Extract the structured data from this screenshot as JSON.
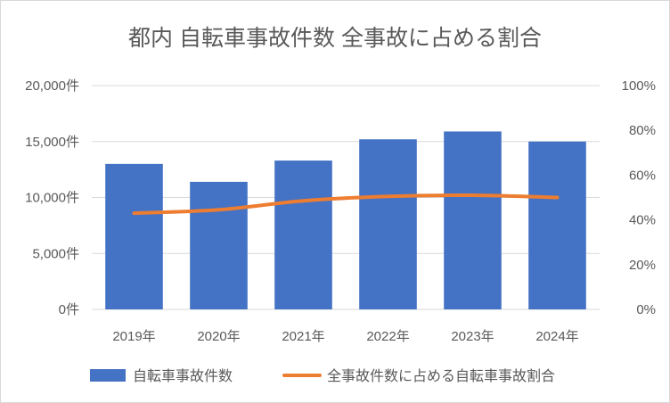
{
  "chart_data": {
    "type": "bar+line",
    "title": "都内 自転車事故件数 全事故に占める割合",
    "categories": [
      "2019年",
      "2020年",
      "2021年",
      "2022年",
      "2023年",
      "2024年"
    ],
    "series": [
      {
        "name": "自転車事故件数",
        "type": "bar",
        "axis": "left",
        "color": "#4472C4",
        "values": [
          13000,
          11400,
          13300,
          15200,
          15900,
          15000
        ]
      },
      {
        "name": "全事故件数に占める自転車事故割合",
        "type": "line",
        "axis": "right",
        "color": "#ED7D31",
        "values": [
          0.43,
          0.445,
          0.485,
          0.505,
          0.51,
          0.5
        ]
      }
    ],
    "y_left": {
      "min": 0,
      "max": 20000,
      "ticks": [
        0,
        5000,
        10000,
        15000,
        20000
      ],
      "tick_labels": [
        "0件",
        "5,000件",
        "10,000件",
        "15,000件",
        "20,000件"
      ]
    },
    "y_right": {
      "min": 0,
      "max": 1,
      "ticks": [
        0,
        0.2,
        0.4,
        0.6,
        0.8,
        1.0
      ],
      "tick_labels": [
        "0%",
        "20%",
        "40%",
        "60%",
        "80%",
        "100%"
      ]
    },
    "grid": true,
    "legend": "bottom"
  }
}
